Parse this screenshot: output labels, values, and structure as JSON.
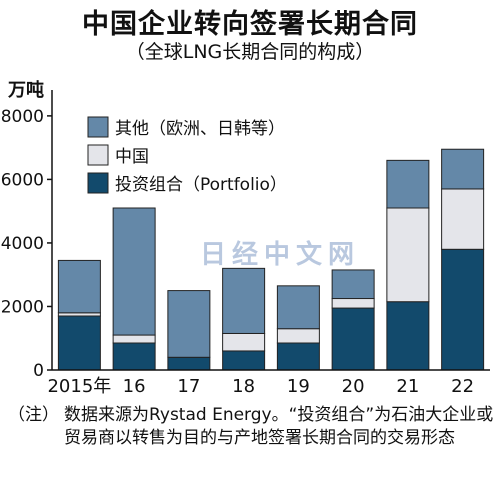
{
  "header": {
    "title": "中国企业转向签署长期合同",
    "subtitle": "（全球LNG长期合同的构成）",
    "unit": "万吨"
  },
  "watermark": "日经中文网",
  "note": {
    "label": "（注）",
    "text": "数据来源为Rystad Energy。“投资组合”为石油大企业或贸易商以转售为目的与产地签署长期合同的交易形态"
  },
  "chart_data": {
    "type": "bar",
    "stacked": true,
    "categories": [
      "2015年",
      "16",
      "17",
      "18",
      "19",
      "20",
      "21",
      "22"
    ],
    "series": [
      {
        "name": "投资组合（Portfolio）",
        "color": "#124a6c",
        "values": [
          1700,
          850,
          400,
          600,
          850,
          1950,
          2150,
          3800
        ]
      },
      {
        "name": "中国",
        "color": "#e4e5ea",
        "values": [
          100,
          250,
          0,
          550,
          450,
          300,
          2950,
          1900
        ]
      },
      {
        "name": "其他（欧洲、日韩等）",
        "color": "#6488a8",
        "values": [
          1650,
          4000,
          2100,
          2050,
          1350,
          900,
          1500,
          1250
        ]
      }
    ],
    "yticks": [
      0,
      2000,
      4000,
      6000,
      8000
    ],
    "ylim": [
      0,
      8500
    ],
    "grid": false,
    "legend": "top-left"
  }
}
